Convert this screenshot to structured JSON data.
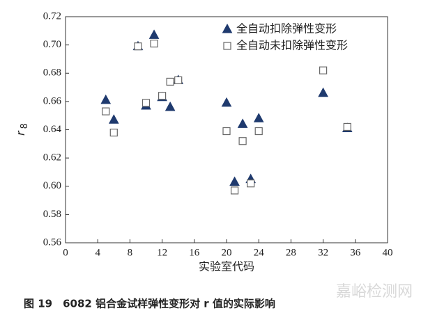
{
  "chart_data": {
    "type": "scatter",
    "xlabel": "实验室代码",
    "ylabel": "r",
    "ylabel_subscript": "8",
    "caption": "图 19　6082 铝合金试样弹性变形对 r 值的实际影响",
    "watermark": "嘉峪检测网",
    "xlim": [
      0,
      40
    ],
    "xticks": [
      0,
      4,
      8,
      12,
      16,
      20,
      24,
      28,
      32,
      36,
      40
    ],
    "ylim": [
      0.56,
      0.72
    ],
    "yticks": [
      0.56,
      0.58,
      {
        "value": 0.6,
        "label": "0.60"
      },
      0.62,
      0.64,
      0.66,
      0.68,
      {
        "value": 0.7,
        "label": "0.70"
      },
      0.72
    ],
    "legend_position": "upper right",
    "series": [
      {
        "name": "全自动扣除弹性变形",
        "color": "#1f3a6e",
        "marker": "triangle",
        "x": [
          5,
          6,
          9,
          10,
          11,
          12,
          13,
          14,
          20,
          21,
          22,
          23,
          24,
          32,
          35
        ],
        "values": [
          0.661,
          0.647,
          0.699,
          0.657,
          0.707,
          0.663,
          0.656,
          0.675,
          0.659,
          0.603,
          0.644,
          0.605,
          0.648,
          0.666,
          0.641
        ]
      },
      {
        "name": "全自动未扣除弹性变形",
        "color": "#666666",
        "marker": "square",
        "x": [
          5,
          6,
          9,
          10,
          11,
          12,
          13,
          14,
          20,
          21,
          22,
          23,
          24,
          32,
          35
        ],
        "values": [
          0.653,
          0.638,
          0.699,
          0.659,
          0.701,
          0.664,
          0.674,
          0.675,
          0.639,
          0.597,
          0.632,
          0.602,
          0.639,
          0.682,
          0.642
        ]
      }
    ]
  }
}
